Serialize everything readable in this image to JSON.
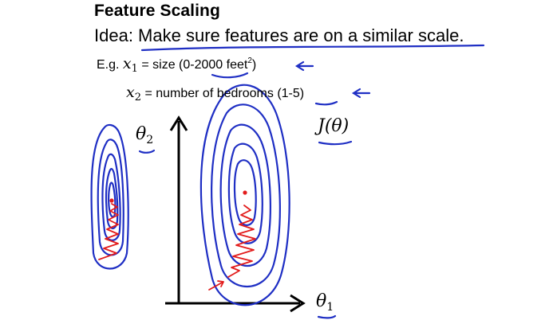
{
  "slide": {
    "title": "Feature Scaling",
    "idea": {
      "prefix": "Idea: ",
      "text": "Make sure features are on a similar scale",
      "suffix": "."
    },
    "example1": {
      "prefix": "E.g. ",
      "variable": "x",
      "subscript": "1",
      "equals": " = size (",
      "range": "0-2000",
      "unit": " feet",
      "unit_exponent": "2",
      "close": ")"
    },
    "example2": {
      "variable": "x",
      "subscript": "2",
      "equals": " = number of bedrooms (",
      "range": "1-5",
      "close": ")"
    },
    "labels": {
      "theta2_symbol": "θ",
      "theta2_sub": "2",
      "j_theta": "J(θ)",
      "theta1_symbol": "θ",
      "theta1_sub": "1"
    }
  },
  "colors": {
    "text": "#000000",
    "annotation_blue": "#1f2fc4",
    "annotation_red": "#e21b1b"
  }
}
